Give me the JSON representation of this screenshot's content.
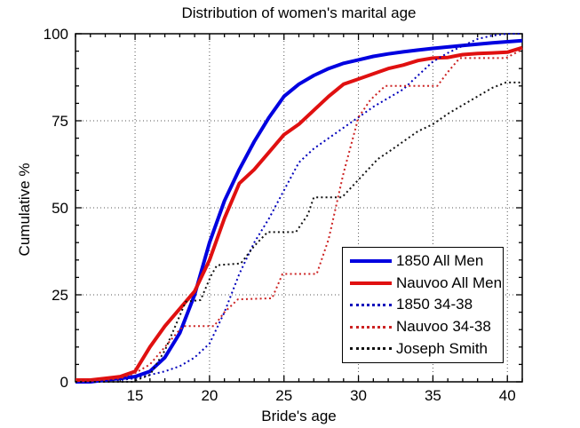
{
  "chart_data": {
    "type": "line",
    "title": "Distribution of women's marital age",
    "xlabel": "Bride's age",
    "ylabel": "Cumulative %",
    "xlim": [
      11,
      41
    ],
    "ylim": [
      0,
      100
    ],
    "x_ticks": [
      15,
      20,
      25,
      30,
      35,
      40
    ],
    "y_ticks": [
      0,
      25,
      50,
      75,
      100
    ],
    "x_minor_step": 1,
    "y_minor_step": 5,
    "grid": true,
    "grid_y_lines": [
      25,
      50,
      75
    ],
    "legend_position": "lower-right-inside",
    "axis_color": "#000000",
    "grid_color": "#555555",
    "series": [
      {
        "name": "1850 All Men",
        "color": "#0000E0",
        "style": "solid",
        "width": 4,
        "points": [
          [
            11,
            0
          ],
          [
            12,
            0
          ],
          [
            13,
            0.5
          ],
          [
            14,
            1
          ],
          [
            15,
            1.5
          ],
          [
            16,
            3
          ],
          [
            17,
            7
          ],
          [
            18,
            14
          ],
          [
            19,
            25
          ],
          [
            20,
            40
          ],
          [
            21,
            52
          ],
          [
            22,
            61
          ],
          [
            23,
            69
          ],
          [
            24,
            76
          ],
          [
            25,
            82
          ],
          [
            26,
            85.5
          ],
          [
            27,
            88
          ],
          [
            28,
            90
          ],
          [
            29,
            91.5
          ],
          [
            30,
            92.5
          ],
          [
            31,
            93.5
          ],
          [
            32,
            94.2
          ],
          [
            33,
            94.8
          ],
          [
            34,
            95.3
          ],
          [
            35,
            95.8
          ],
          [
            36,
            96.2
          ],
          [
            37,
            96.6
          ],
          [
            38,
            97
          ],
          [
            39,
            97.4
          ],
          [
            40,
            97.7
          ],
          [
            41,
            98
          ]
        ]
      },
      {
        "name": "Nauvoo All Men",
        "color": "#E01010",
        "style": "solid",
        "width": 4,
        "points": [
          [
            11,
            0.5
          ],
          [
            12,
            0.5
          ],
          [
            13,
            1
          ],
          [
            14,
            1.5
          ],
          [
            15,
            3
          ],
          [
            16,
            10
          ],
          [
            17,
            16
          ],
          [
            18,
            21
          ],
          [
            19,
            26
          ],
          [
            20,
            35
          ],
          [
            21,
            47
          ],
          [
            22,
            57
          ],
          [
            23,
            61
          ],
          [
            24,
            66
          ],
          [
            25,
            71
          ],
          [
            26,
            74
          ],
          [
            27,
            78
          ],
          [
            28,
            82
          ],
          [
            29,
            85.5
          ],
          [
            30,
            87
          ],
          [
            31,
            88.5
          ],
          [
            32,
            90
          ],
          [
            33,
            91
          ],
          [
            34,
            92.3
          ],
          [
            35,
            93
          ],
          [
            36,
            93.2
          ],
          [
            37,
            94
          ],
          [
            38,
            94.3
          ],
          [
            39,
            94.5
          ],
          [
            40,
            94.7
          ],
          [
            41,
            96
          ]
        ]
      },
      {
        "name": "1850 34-38",
        "color": "#0000BB",
        "style": "dotted",
        "width": 2,
        "points": [
          [
            11,
            0
          ],
          [
            13,
            0
          ],
          [
            14,
            0.5
          ],
          [
            15,
            1
          ],
          [
            16,
            2
          ],
          [
            17,
            3
          ],
          [
            18,
            4.5
          ],
          [
            19,
            7
          ],
          [
            20,
            11
          ],
          [
            21,
            20
          ],
          [
            22,
            31
          ],
          [
            23,
            40
          ],
          [
            24,
            47
          ],
          [
            25,
            55
          ],
          [
            26,
            63
          ],
          [
            27,
            67
          ],
          [
            28,
            70
          ],
          [
            29,
            73
          ],
          [
            30,
            76
          ],
          [
            31,
            79
          ],
          [
            32,
            81.5
          ],
          [
            33,
            84
          ],
          [
            34,
            88
          ],
          [
            35,
            92
          ],
          [
            36,
            94.5
          ],
          [
            37,
            96.5
          ],
          [
            38,
            98.5
          ],
          [
            39,
            99.5
          ],
          [
            40,
            100
          ],
          [
            41,
            100
          ]
        ]
      },
      {
        "name": "Nauvoo 34-38",
        "color": "#CC2222",
        "style": "dotted",
        "width": 2,
        "points": [
          [
            11,
            0.5
          ],
          [
            13,
            0.5
          ],
          [
            14,
            1
          ],
          [
            15,
            2.5
          ],
          [
            16,
            5
          ],
          [
            17,
            10
          ],
          [
            18,
            15
          ],
          [
            18.3,
            16
          ],
          [
            20.3,
            16
          ],
          [
            21,
            20
          ],
          [
            21.9,
            23.7
          ],
          [
            24.2,
            24
          ],
          [
            24.9,
            31
          ],
          [
            27.2,
            31
          ],
          [
            28,
            41
          ],
          [
            29,
            60
          ],
          [
            30,
            76
          ],
          [
            30.8,
            81
          ],
          [
            31.8,
            85
          ],
          [
            35.3,
            85
          ],
          [
            36,
            89
          ],
          [
            36.8,
            93
          ],
          [
            39.9,
            93
          ],
          [
            41,
            95.5
          ]
        ]
      },
      {
        "name": "Joseph Smith",
        "color": "#111111",
        "style": "dotted",
        "width": 2,
        "points": [
          [
            11,
            0
          ],
          [
            14.8,
            0
          ],
          [
            16,
            2
          ],
          [
            17,
            9
          ],
          [
            18,
            19
          ],
          [
            18.4,
            23
          ],
          [
            19.4,
            23.5
          ],
          [
            20.1,
            30.5
          ],
          [
            20.5,
            33.5
          ],
          [
            22.1,
            34
          ],
          [
            23,
            39
          ],
          [
            23.9,
            43
          ],
          [
            25.8,
            43
          ],
          [
            26.6,
            48
          ],
          [
            27,
            53
          ],
          [
            28.9,
            53
          ],
          [
            30.1,
            58.5
          ],
          [
            31.3,
            64
          ],
          [
            32,
            66
          ],
          [
            33,
            69
          ],
          [
            34,
            72
          ],
          [
            35,
            74
          ],
          [
            36,
            77
          ],
          [
            37,
            79.5
          ],
          [
            38,
            82
          ],
          [
            39,
            84.5
          ],
          [
            39.9,
            86
          ],
          [
            41,
            86
          ]
        ]
      }
    ]
  }
}
